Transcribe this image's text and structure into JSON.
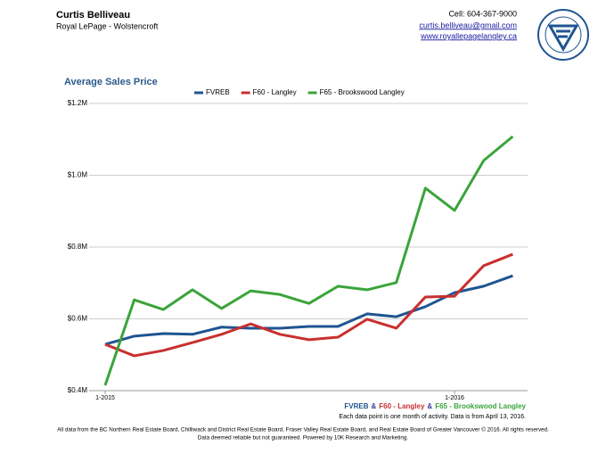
{
  "header": {
    "name": "Curtis Belliveau",
    "company": "Royal LePage - Wolstencroft",
    "cell": "Cell: 604-367-9000",
    "email": "curtis.belliveau@gmail.com",
    "website": "www.royallepagelangley.ca"
  },
  "chart_data": {
    "type": "line",
    "title": "Average Sales Price",
    "categories": [
      "1-2015",
      null,
      null,
      null,
      null,
      null,
      null,
      null,
      null,
      null,
      null,
      null,
      "1-2016",
      null,
      null
    ],
    "series": [
      {
        "name": "FVREB",
        "color": "#1f5591",
        "values": [
          0.529,
          0.552,
          0.559,
          0.557,
          0.577,
          0.574,
          0.574,
          0.579,
          0.579,
          0.614,
          0.606,
          0.634,
          0.673,
          0.691,
          0.72
        ]
      },
      {
        "name": "F60 - Langley",
        "color": "#c8302f",
        "values": [
          0.529,
          0.497,
          0.512,
          0.534,
          0.557,
          0.586,
          0.557,
          0.542,
          0.549,
          0.599,
          0.574,
          0.661,
          0.663,
          0.748,
          0.78
        ]
      },
      {
        "name": "F65 - Brookswood Langley",
        "color": "#3aa43a",
        "values": [
          0.415,
          0.653,
          0.626,
          0.681,
          0.629,
          0.678,
          0.668,
          0.643,
          0.691,
          0.681,
          0.701,
          0.964,
          0.902,
          1.041,
          1.108
        ]
      }
    ],
    "ylim": [
      0.4,
      1.2
    ],
    "yticks": [
      {
        "value": 0.4,
        "label": "$0.4M"
      },
      {
        "value": 0.6,
        "label": "$0.6M"
      },
      {
        "value": 0.8,
        "label": "$0.8M"
      },
      {
        "value": 1.0,
        "label": "$1.0M"
      },
      {
        "value": 1.2,
        "label": "$1.2M"
      }
    ],
    "grid": true,
    "legend": "top"
  },
  "bottom_legend": [
    "FVREB",
    "&",
    "F60 - Langley",
    "&",
    "F65 - Brookswood Langley"
  ],
  "note": "Each data point is one month of activity. Data is from April 13, 2016.",
  "footer": [
    "All data from the BC Northern Real Estate Board, Chilliwack and District Real Estate Board, Fraser Valley Real Estate Board, and Real Estate Board of Greater Vancouver © 2016. All rights reserved.",
    "Data deemed reliable but not guaranteed. Powered by 10K Research and Marketing."
  ]
}
